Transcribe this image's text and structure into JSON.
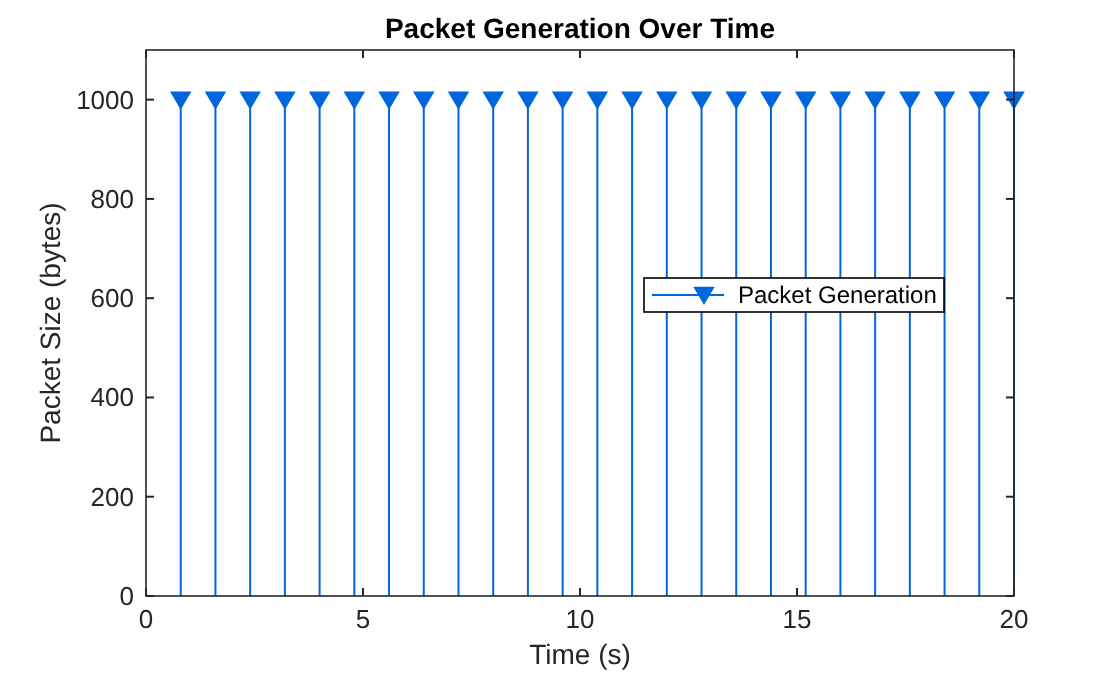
{
  "chart_data": {
    "type": "lollipop",
    "title": "Packet Generation Over Time",
    "xlabel": "Time (s)",
    "ylabel": "Packet Size (bytes)",
    "x": [
      0.8,
      1.6,
      2.4,
      3.2,
      4.0,
      4.8,
      5.6,
      6.4,
      7.2,
      8.0,
      8.8,
      9.6,
      10.4,
      11.2,
      12.0,
      12.8,
      13.6,
      14.4,
      15.2,
      16.0,
      16.8,
      17.6,
      18.4,
      19.2,
      20.0
    ],
    "series": [
      {
        "name": "Packet Generation",
        "color": "#0066dd",
        "values": [
          1000,
          1000,
          1000,
          1000,
          1000,
          1000,
          1000,
          1000,
          1000,
          1000,
          1000,
          1000,
          1000,
          1000,
          1000,
          1000,
          1000,
          1000,
          1000,
          1000,
          1000,
          1000,
          1000,
          1000,
          1000
        ]
      }
    ],
    "xlim": [
      0,
      20
    ],
    "xticks": [
      0,
      5,
      10,
      15,
      20
    ],
    "ylim": [
      0,
      1100
    ],
    "yticks": [
      0,
      200,
      400,
      600,
      800,
      1000
    ],
    "grid": false,
    "legend": "right",
    "marker": "triangle",
    "line_style": "solid"
  }
}
